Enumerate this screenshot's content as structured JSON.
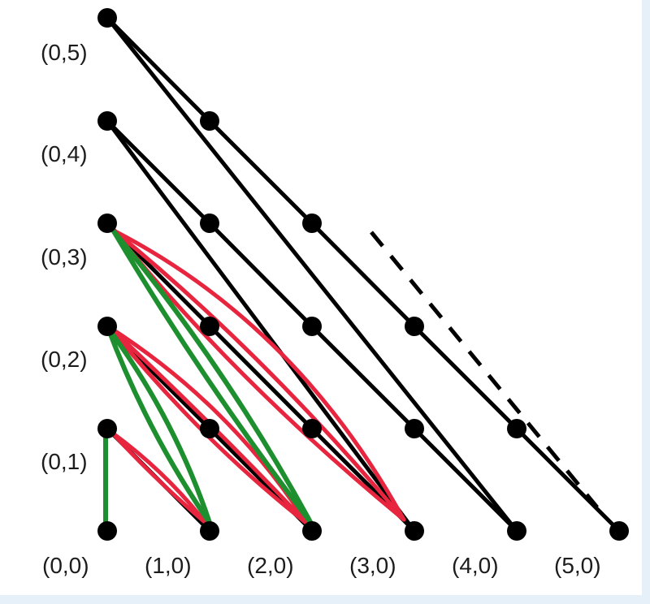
{
  "colors": {
    "black": "#000000",
    "red": "#e8253f",
    "green": "#1e8f2f",
    "panel": "#e6f0f8"
  },
  "labels": {
    "axis_x": [
      "(0,0)",
      "(1,0)",
      "(2,0)",
      "(3,0)",
      "(4,0)",
      "(5,0)"
    ],
    "axis_y": [
      "(0,1)",
      "(0,2)",
      "(0,3)",
      "(0,4)",
      "(0,5)"
    ]
  },
  "grid": {
    "description_points": "lattice points (i,j) with i + j <= 5"
  }
}
